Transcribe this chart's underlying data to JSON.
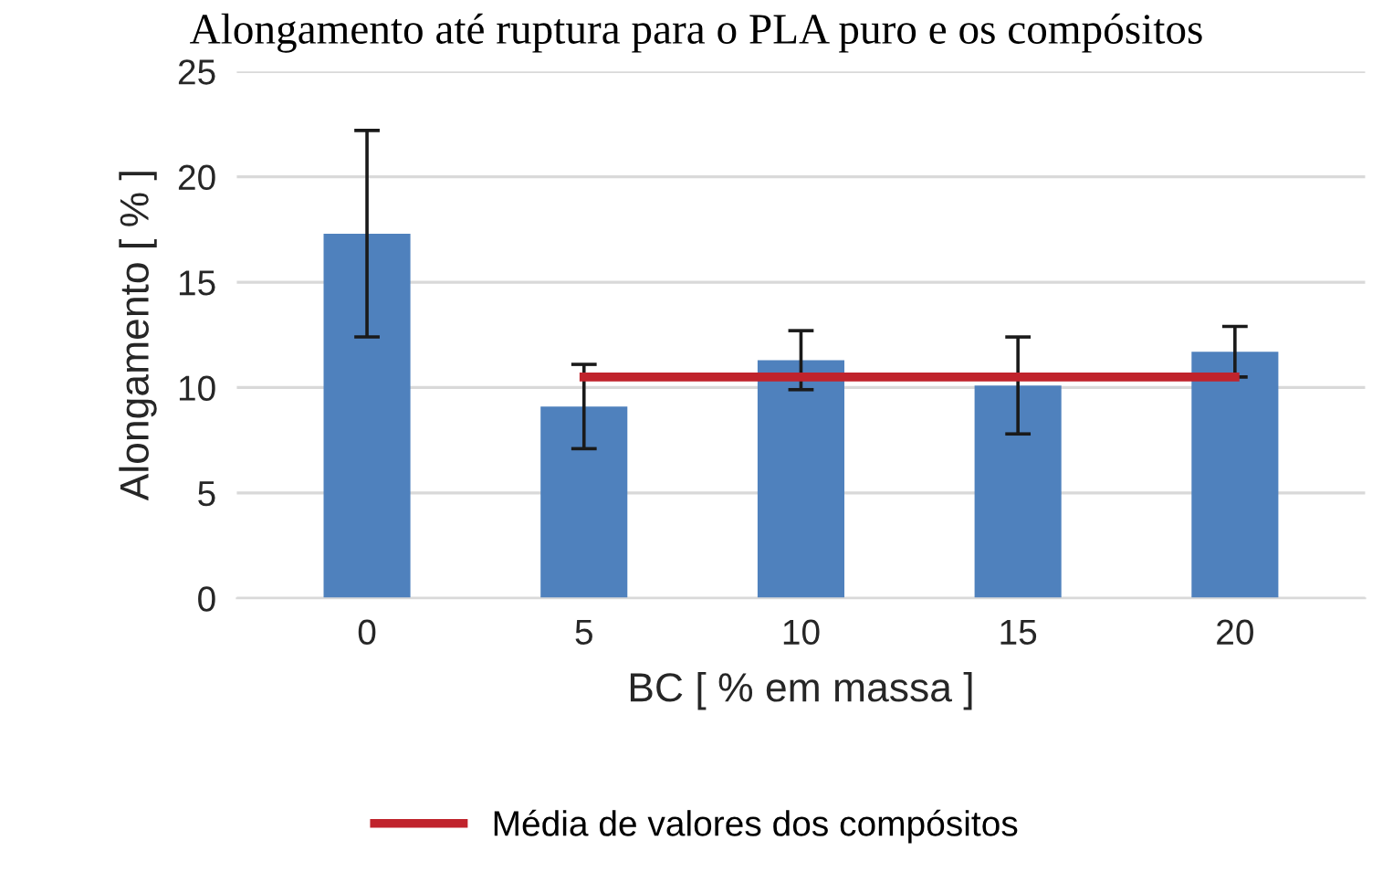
{
  "chart_data": {
    "type": "bar",
    "title": "Alongamento até ruptura para o PLA puro e os compósitos",
    "xlabel": "BC [ % em massa ]",
    "ylabel": "Alongamento [ % ]",
    "categories": [
      "0",
      "5",
      "10",
      "15",
      "20"
    ],
    "series": [
      {
        "color": "#4f81bd",
        "values": [
          17.3,
          9.1,
          11.3,
          10.1,
          11.7
        ],
        "errors": [
          4.9,
          2.0,
          1.4,
          2.3,
          1.2
        ]
      },
      {
        "type": "line",
        "name": "Média de valores dos compósitos",
        "color": "#c0232c",
        "values": [
          null,
          10.5,
          10.5,
          10.5,
          10.5
        ]
      }
    ],
    "ylim": [
      0,
      25
    ],
    "yticks": [
      0,
      5,
      10,
      15,
      20,
      25
    ],
    "grid": "y",
    "legend": "bottom",
    "marker": "none",
    "line_style": "solid"
  }
}
